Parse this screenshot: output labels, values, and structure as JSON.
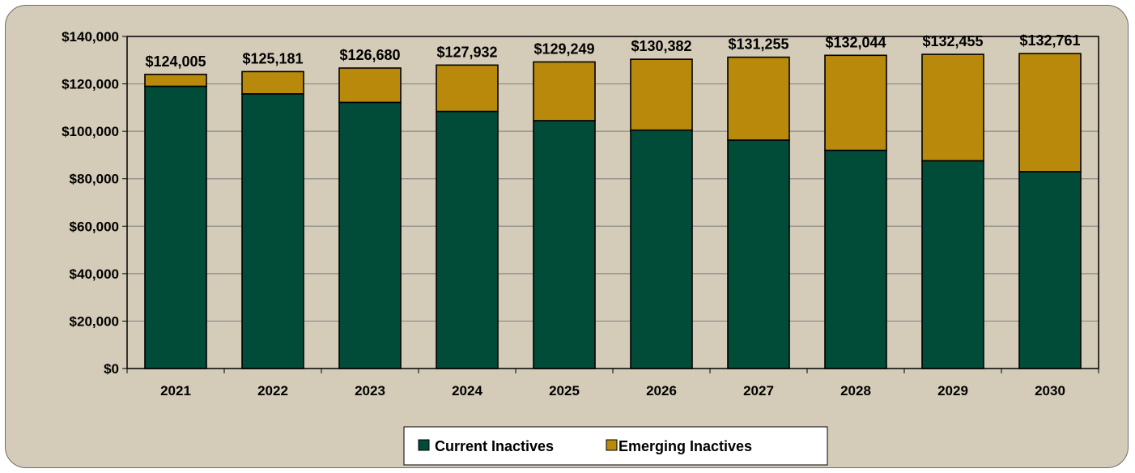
{
  "chart_data": {
    "type": "bar",
    "stacked": true,
    "categories": [
      "2021",
      "2022",
      "2023",
      "2024",
      "2025",
      "2026",
      "2027",
      "2028",
      "2029",
      "2030"
    ],
    "series": [
      {
        "name": "Current Inactives",
        "color": "#004c39",
        "values": [
          119000,
          115800,
          112200,
          108400,
          104500,
          100500,
          96300,
          92000,
          87600,
          83000
        ]
      },
      {
        "name": "Emerging Inactives",
        "color": "#b8890a",
        "values": [
          5005,
          9381,
          14480,
          19532,
          24749,
          29882,
          34955,
          40044,
          44855,
          49761
        ]
      }
    ],
    "totals": [
      "$124,005",
      "$125,181",
      "$126,680",
      "$127,932",
      "$129,249",
      "$130,382",
      "$131,255",
      "$132,044",
      "$132,455",
      "$132,761"
    ],
    "ylim": [
      0,
      140000
    ],
    "yticks": [
      0,
      20000,
      40000,
      60000,
      80000,
      100000,
      120000,
      140000
    ],
    "ytick_labels": [
      "$0",
      "$20,000",
      "$40,000",
      "$60,000",
      "$80,000",
      "$100,000",
      "$120,000",
      "$140,000"
    ],
    "grid": true,
    "legend_position": "bottom-center",
    "plot_background": "#d4ccb8"
  }
}
